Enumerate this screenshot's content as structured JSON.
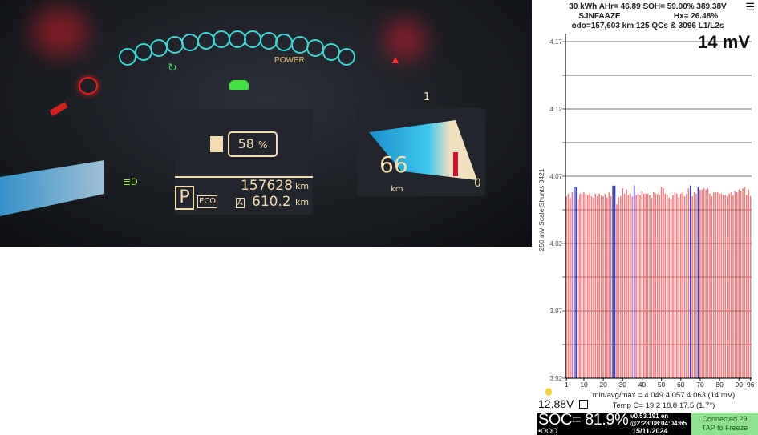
{
  "dashboard": {
    "power_label": "POWER",
    "battery_percent": "58",
    "percent_sign": "%",
    "odometer": "157628",
    "odometer_unit": "km",
    "trip": "610.2",
    "trip_unit": "km",
    "trip_label": "A",
    "gear": "P",
    "mode": "ECO",
    "range": "66",
    "range_unit": "km",
    "gauge_min": "0",
    "gauge_mark": "1"
  },
  "app": {
    "header_line1": "30 kWh  AHr= 46.89  SOH= 59.00%  389.38V",
    "vin": "SJNFAAZE",
    "hx": "Hx= 26.48%",
    "header_line3": "odo=157,603 km 125 QCs & 3096 L1/L2s",
    "delta": "14 mV",
    "stats": "min/avg/max = 4.049 4.057 4.063  (14 mV)",
    "temp": "Temp C= 19.2  18.8  17.5  (1.7°)",
    "aux_voltage": "12.88V",
    "soc": "SOC= 81.9%",
    "version": "v0.53.191 en",
    "time": "@2:28:08:04:04:65",
    "date": "15/11/2024",
    "dots": "•OOO",
    "connected": "Connected 29",
    "tap": "TAP to Freeze",
    "menu_icon": "hamburger-menu-icon"
  },
  "chart_data": {
    "type": "bar",
    "ylabel": "250 mV Scale  Shunts 8421",
    "ylim": [
      3.92,
      4.17
    ],
    "yticks": [
      "4.17",
      "4.12",
      "4.07",
      "4.02",
      "3.97",
      "3.92"
    ],
    "xticks": [
      "1",
      "10",
      "20",
      "30",
      "40",
      "50",
      "60",
      "70",
      "80",
      "90",
      "96"
    ],
    "grid": true,
    "colors": {
      "normal": "#f06a6a",
      "shunt": "#3b3bd0"
    },
    "shunt_cells": [
      5,
      6,
      25,
      26,
      36,
      65,
      69
    ],
    "values": [
      4.055,
      4.057,
      4.054,
      4.058,
      4.062,
      4.062,
      4.053,
      4.057,
      4.057,
      4.058,
      4.057,
      4.056,
      4.057,
      4.055,
      4.054,
      4.057,
      4.055,
      4.057,
      4.056,
      4.055,
      4.057,
      4.054,
      4.058,
      4.055,
      4.063,
      4.063,
      4.049,
      4.054,
      4.055,
      4.061,
      4.057,
      4.06,
      4.056,
      4.057,
      4.055,
      4.063,
      4.056,
      4.057,
      4.056,
      4.059,
      4.057,
      4.057,
      4.057,
      4.056,
      4.054,
      4.058,
      4.057,
      4.057,
      4.056,
      4.062,
      4.061,
      4.057,
      4.056,
      4.054,
      4.053,
      4.056,
      4.058,
      4.057,
      4.054,
      4.057,
      4.058,
      4.055,
      4.057,
      4.061,
      4.063,
      4.055,
      4.058,
      4.057,
      4.062,
      4.06,
      4.06,
      4.061,
      4.06,
      4.061,
      4.057,
      4.055,
      4.058,
      4.058,
      4.058,
      4.057,
      4.057,
      4.056,
      4.056,
      4.055,
      4.057,
      4.058,
      4.056,
      4.059,
      4.058,
      4.06,
      4.059,
      4.061,
      4.062,
      4.056,
      4.06,
      4.055
    ]
  }
}
